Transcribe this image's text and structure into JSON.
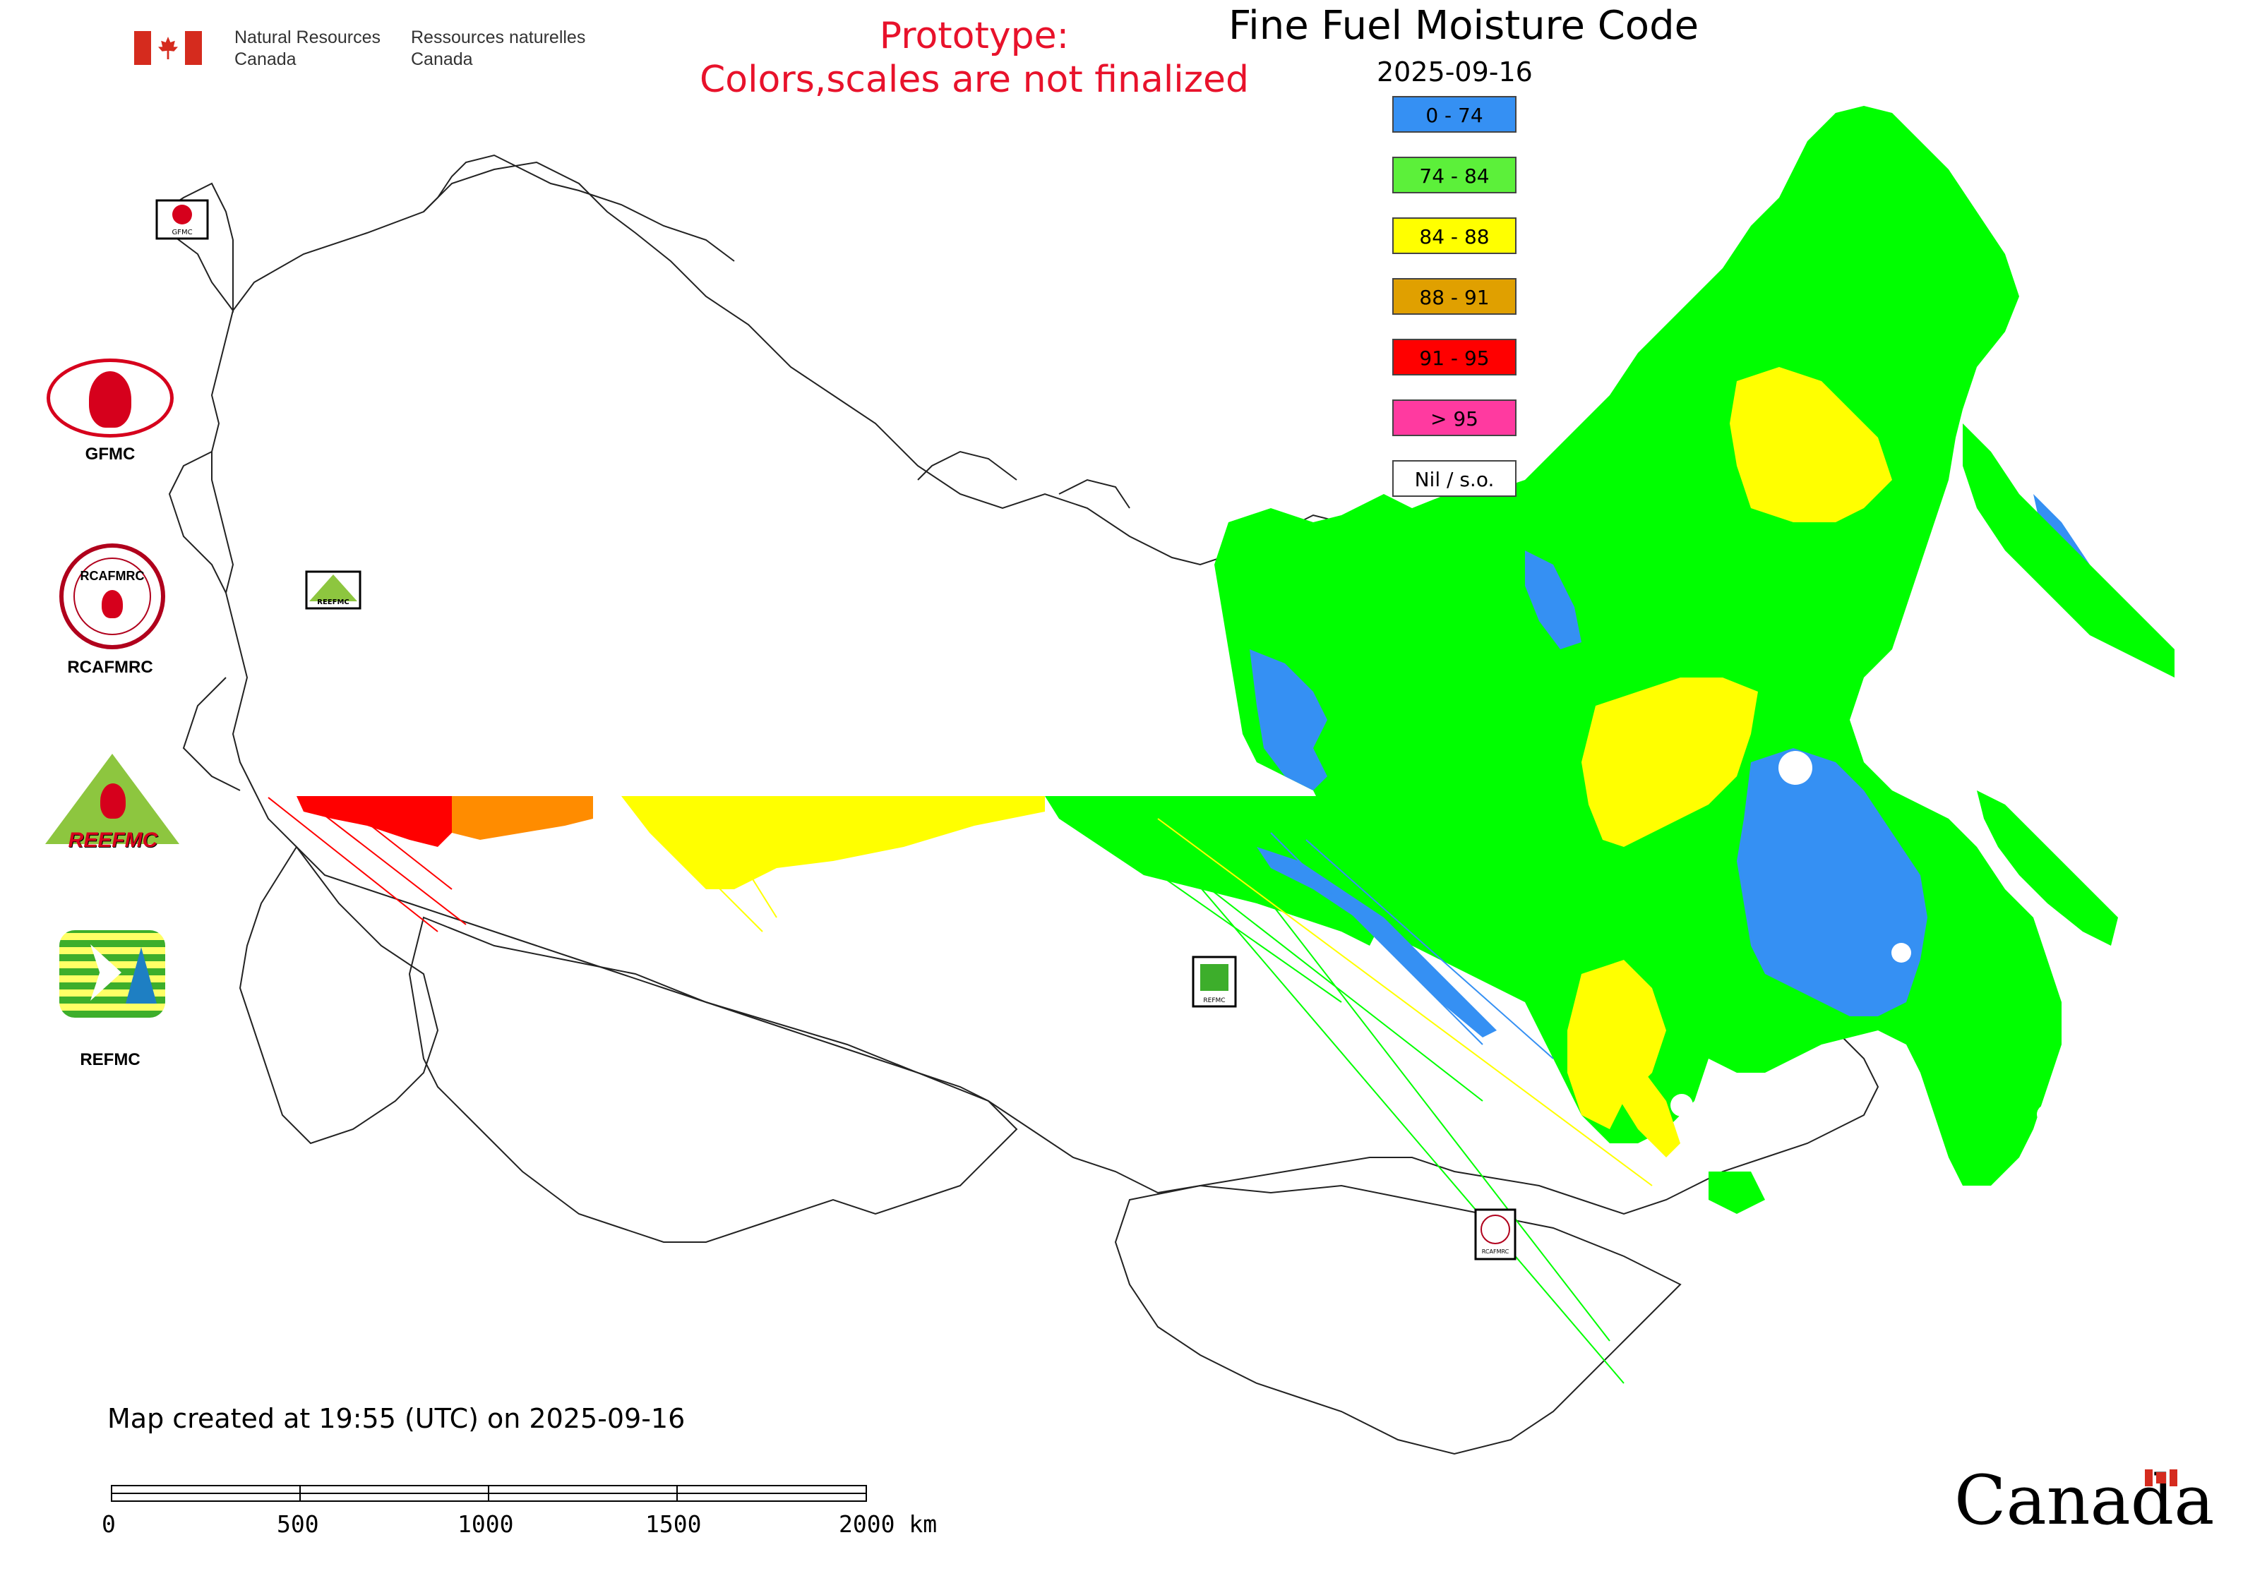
{
  "header": {
    "gov_en_line1": "Natural Resources",
    "gov_en_line2": "Canada",
    "gov_fr_line1": "Ressources naturelles",
    "gov_fr_line2": "Canada",
    "prototype_line1": "Prototype:",
    "prototype_line2": "Colors,scales are not finalized",
    "title": "Fine Fuel Moisture Code",
    "date": "2025-09-16"
  },
  "legend": [
    {
      "label": "0 - 74",
      "color": "#3590f3"
    },
    {
      "label": "74 - 84",
      "color": "#5cf03a"
    },
    {
      "label": "84 - 88",
      "color": "#ffff00"
    },
    {
      "label": "88 - 91",
      "color": "#e0a000"
    },
    {
      "label": "91 - 95",
      "color": "#ff0000"
    },
    {
      "label": "> 95",
      "color": "#ff3aa0"
    },
    {
      "label": "Nil / s.o.",
      "color": "#ffffff"
    }
  ],
  "orgs": {
    "gfmc": "GFMC",
    "rcafmrc": "RCAFMRC",
    "reefmc": "REEFMC",
    "refmc": "REFMC",
    "rcafmrc_logo_text": "RCAFMRC",
    "reefmc_logo_text": "REEFMC"
  },
  "map_markers": {
    "gfmc": "GFMC",
    "reefmc": "REEFMC",
    "refmc": "REFMC",
    "rcafmrc": "RCAFMRC"
  },
  "footer": {
    "created": "Map created at 19:55 (UTC) on 2025-09-16",
    "scale_labels": [
      "0",
      "500",
      "1000",
      "1500",
      "2000 km"
    ],
    "canada_wordmark": "Canada"
  },
  "colors": {
    "low": "#3590f3",
    "moderate": "#00ff00",
    "high": "#ffff00",
    "veryhigh": "#e0a000",
    "extreme": "#ff0000",
    "orange": "#ff8c00",
    "prototype_red": "#e8122b",
    "flag_red": "#d52b1e"
  }
}
